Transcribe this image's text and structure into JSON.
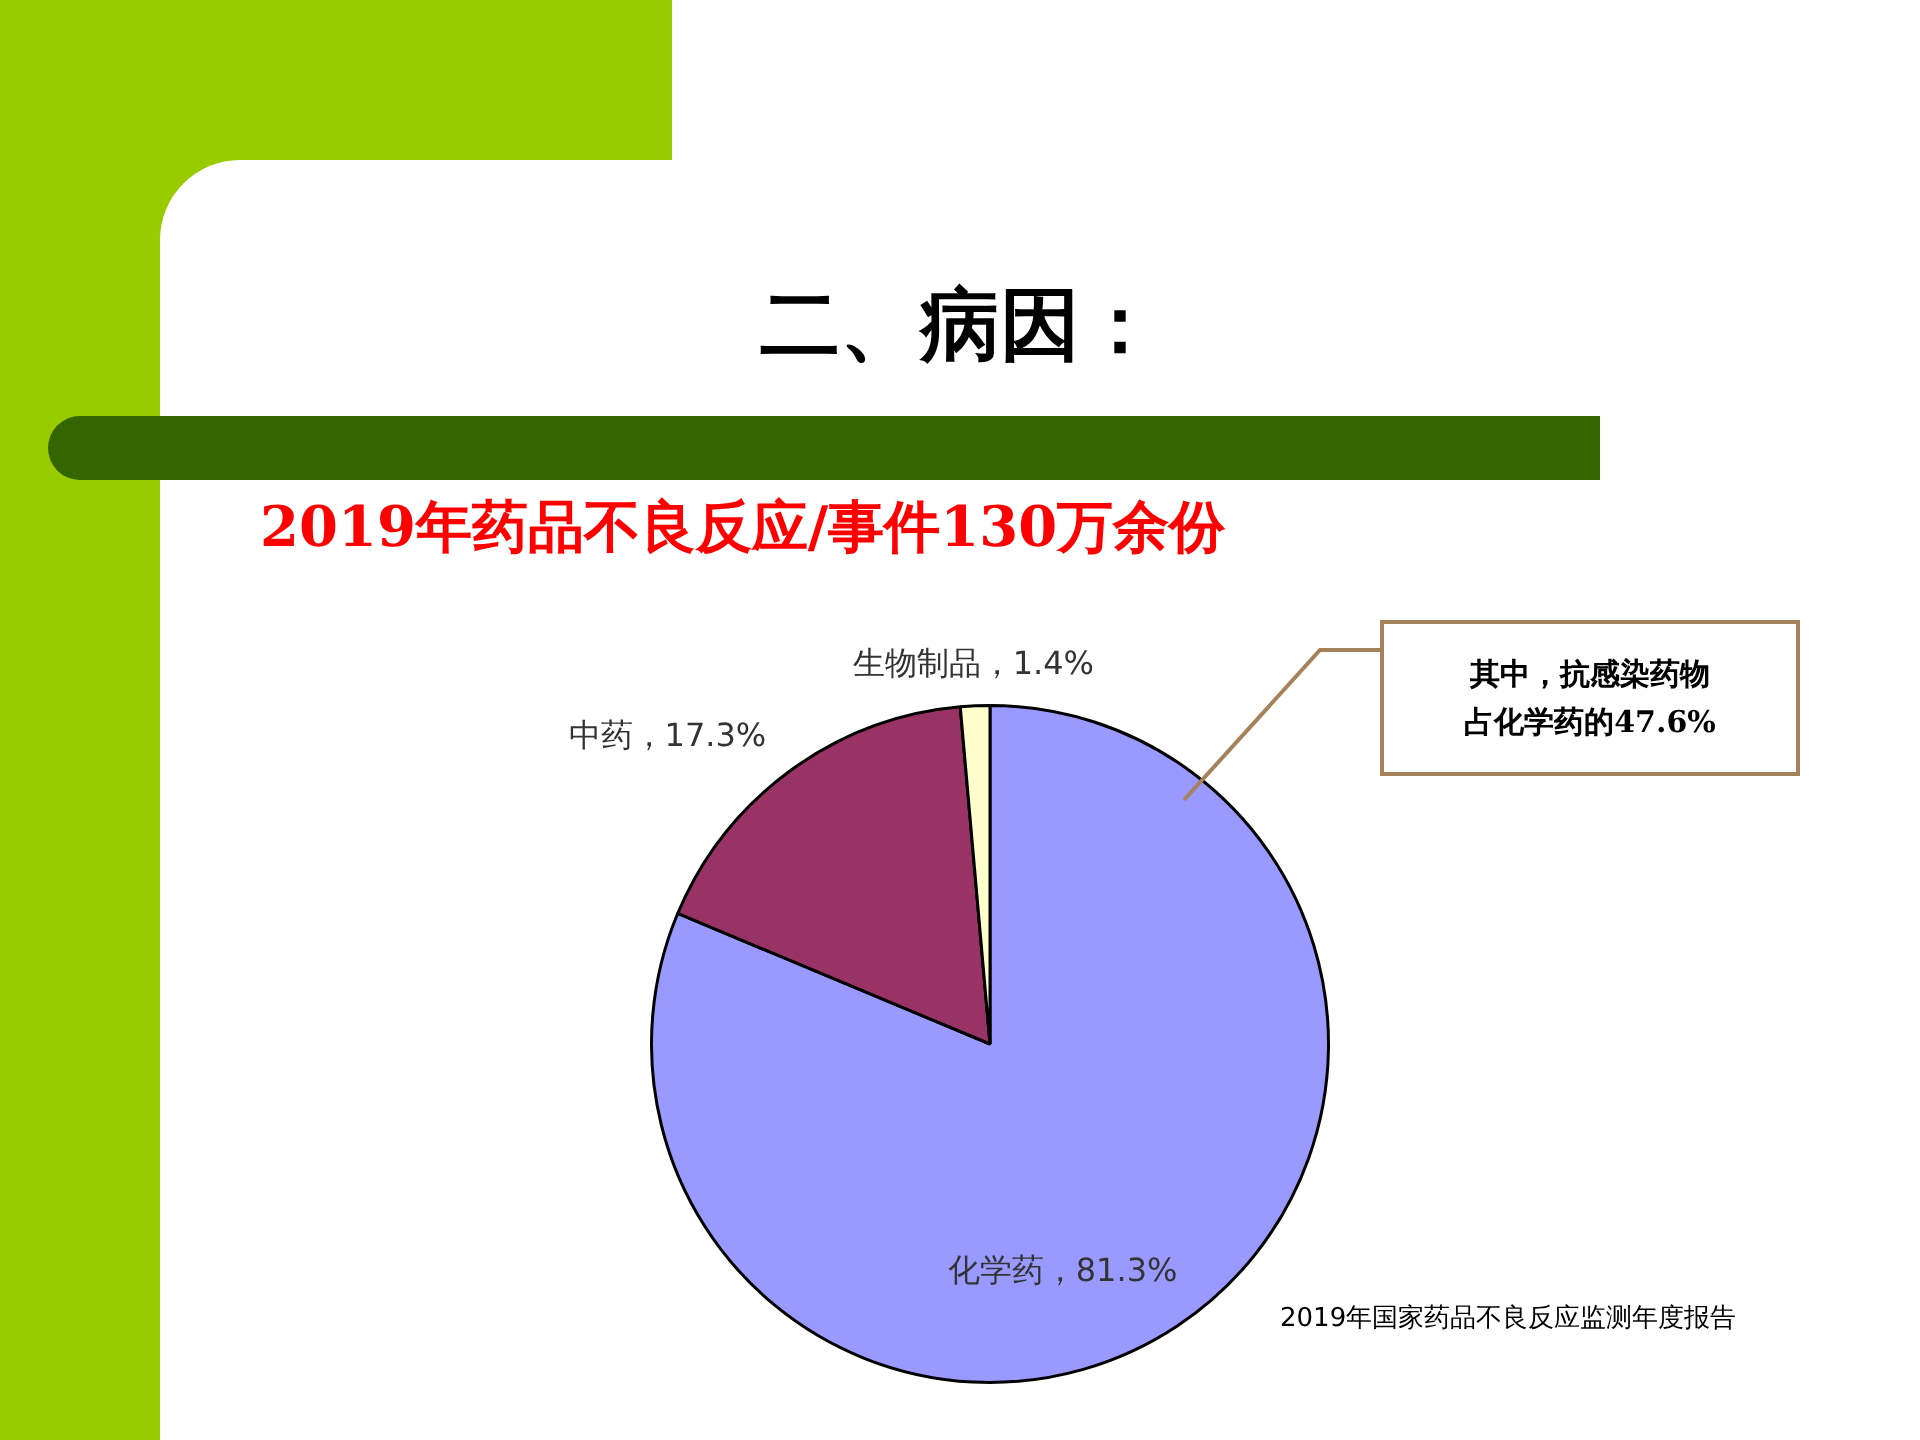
{
  "chart_data": {
    "type": "pie",
    "title": "二、病因：",
    "subtitle": "2019年药品不良反应/事件130万余份",
    "categories": [
      "化学药",
      "中药",
      "生物制品"
    ],
    "values": [
      81.3,
      17.3,
      1.4
    ],
    "colors": [
      "#9999ff",
      "#993366",
      "#ffffcc"
    ],
    "value_labels": [
      "81.3%",
      "17.3%",
      "1.4%"
    ],
    "legend": false,
    "annotations": [
      "其中，抗感染药物占化学药的47.6%",
      "2019年国家药品不良反应监测年度报告"
    ]
  }
}
